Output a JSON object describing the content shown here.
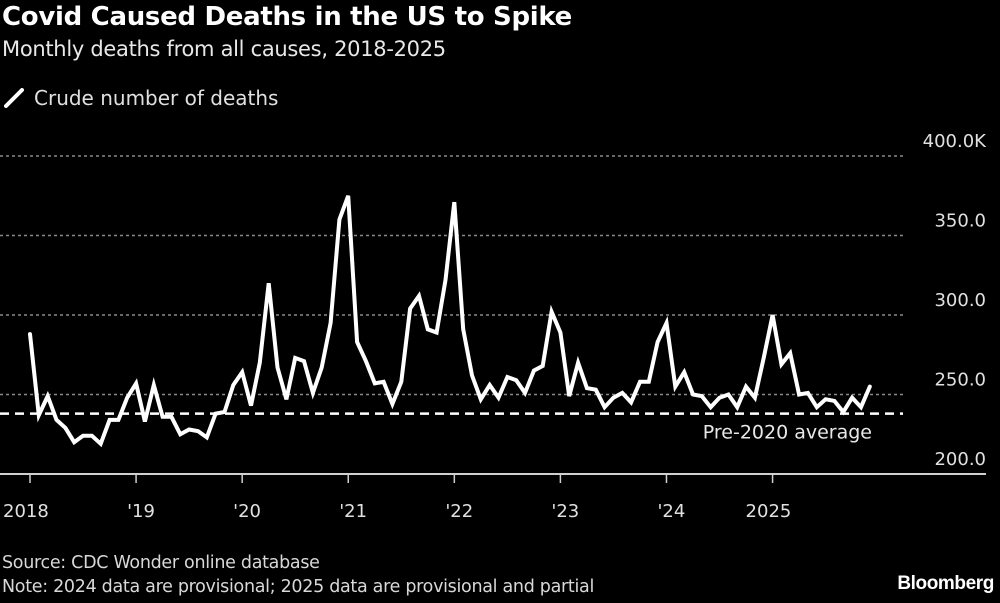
{
  "header": {
    "title": "Covid Caused Deaths in the US to Spike",
    "subtitle": "Monthly deaths from all causes, 2018-2025"
  },
  "legend": {
    "items": [
      {
        "label": "Crude number of deaths",
        "icon": "line-swatch-icon",
        "color": "#ffffff"
      }
    ]
  },
  "footer": {
    "source": "Source: CDC Wonder online database",
    "note": "Note: 2024 data are provisional; 2025 data are provisional and partial",
    "brand": "Bloomberg"
  },
  "colors": {
    "background": "#000000",
    "line": "#ffffff",
    "grid": "#8a8a8a",
    "text": "#e0e0e0"
  },
  "chart_data": {
    "type": "line",
    "title": "Covid Caused Deaths in the US to Spike",
    "subtitle": "Monthly deaths from all causes, 2018-2025",
    "xlabel": "",
    "ylabel": "",
    "unit": "thousands of deaths",
    "x_start": "2018-01",
    "x_end": "2025-12",
    "xlim": [
      "2018-01",
      "2025-12"
    ],
    "ylim": [
      200,
      400
    ],
    "y_ticks": [
      200,
      250,
      300,
      350,
      400
    ],
    "y_tick_labels": [
      "200.0",
      "250.0",
      "300.0",
      "350.0",
      "400.0K"
    ],
    "x_ticks": [
      "2018-01",
      "2019-01",
      "2020-01",
      "2021-01",
      "2022-01",
      "2023-01",
      "2024-01",
      "2025-01"
    ],
    "x_tick_labels": [
      "2018",
      "'19",
      "'20",
      "'21",
      "'22",
      "'23",
      "'24",
      "2025"
    ],
    "grid": true,
    "y_axis_position": "right",
    "legend_position": "top-left",
    "series": [
      {
        "name": "Crude number of deaths",
        "frequency": "monthly",
        "values": [
          288,
          237,
          249,
          234,
          229,
          220,
          224,
          224,
          219,
          234,
          234,
          248,
          257,
          233,
          256,
          236,
          236,
          225,
          228,
          227,
          223,
          238,
          239,
          256,
          264,
          243,
          270,
          320,
          267,
          247,
          273,
          271,
          251,
          267,
          295,
          360,
          375,
          283,
          271,
          257,
          258,
          244,
          258,
          304,
          312,
          291,
          289,
          322,
          371,
          291,
          262,
          247,
          256,
          248,
          261,
          259,
          251,
          265,
          268,
          302,
          289,
          249,
          270,
          254,
          253,
          242,
          248,
          251,
          245,
          258,
          258,
          283,
          295,
          255,
          264,
          250,
          249,
          242,
          248,
          250,
          242,
          255,
          248,
          273,
          300,
          269,
          276,
          250,
          251,
          242,
          247,
          246,
          239,
          248,
          242,
          255
        ]
      }
    ],
    "annotations": [
      {
        "type": "hline",
        "label": "Pre-2020 average",
        "value": 238,
        "style": "dashed"
      }
    ]
  }
}
